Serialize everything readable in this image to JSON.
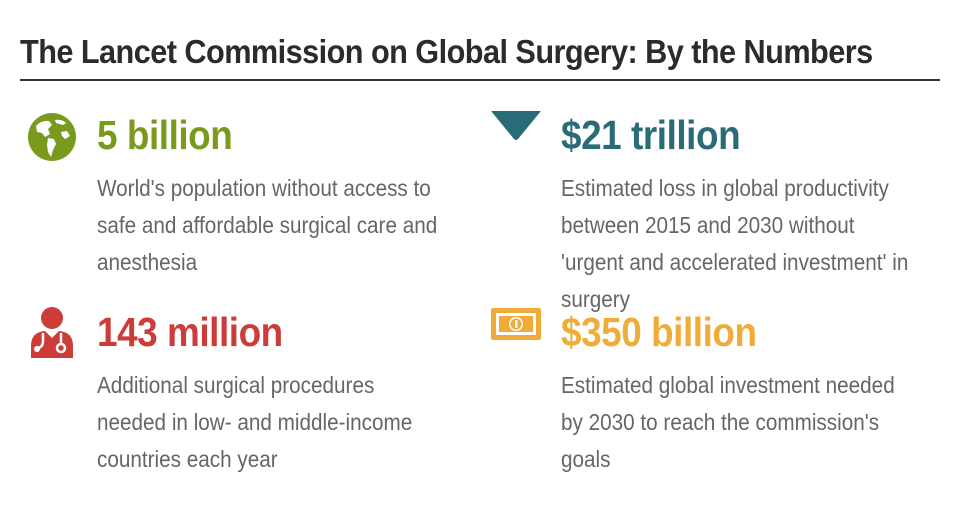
{
  "title": "The Lancet Commission on Global Surgery: By the Numbers",
  "colors": {
    "title": "#2b2b2b",
    "rule": "#333333",
    "description": "#666666"
  },
  "stats": [
    {
      "value": "5 billion",
      "description": "World's population without access to safe and affordable surgical care and anesthesia",
      "color": "#7a9a1e",
      "icon": "globe-icon"
    },
    {
      "value": "$21 trillion",
      "description": "Estimated loss in global productivity between 2015 and 2030 without 'urgent and accelerated investment' in surgery",
      "color": "#2a6b78",
      "icon": "down-triangle-icon"
    },
    {
      "value": "143 million",
      "description": "Additional surgical procedures needed in low- and middle-income countries each year",
      "color": "#cc3c39",
      "icon": "doctor-icon"
    },
    {
      "value": "$350 billion",
      "description": "Estimated global investment needed by 2030 to reach the commission's goals",
      "color": "#f0ac38",
      "icon": "money-icon"
    }
  ]
}
